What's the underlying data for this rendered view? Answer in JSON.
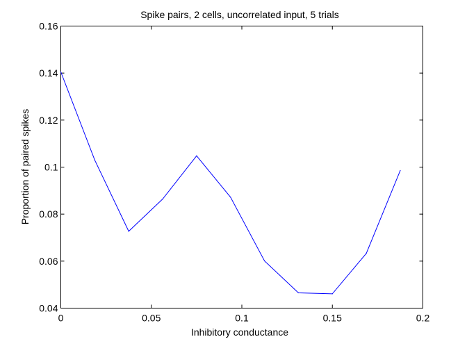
{
  "chart_data": {
    "type": "line",
    "title": "Spike pairs, 2 cells, uncorrelated input, 5 trials",
    "xlabel": "Inhibitory conductance",
    "ylabel": "Proportion of paired spikes",
    "xlim": [
      0,
      0.2
    ],
    "ylim": [
      0.04,
      0.16
    ],
    "xticks": [
      0,
      0.05,
      0.1,
      0.15,
      0.2
    ],
    "xtick_labels": [
      "0",
      "0.05",
      "0.1",
      "0.15",
      "0.2"
    ],
    "yticks": [
      0.04,
      0.06,
      0.08,
      0.1,
      0.12,
      0.14,
      0.16
    ],
    "ytick_labels": [
      "0.04",
      "0.06",
      "0.08",
      "0.1",
      "0.12",
      "0.14",
      "0.16"
    ],
    "grid": false,
    "series": [
      {
        "color": "#0000ff",
        "x": [
          0,
          0.01875,
          0.0375,
          0.05625,
          0.075,
          0.09375,
          0.1125,
          0.13125,
          0.15,
          0.16875,
          0.1875
        ],
        "y": [
          0.1405,
          0.103,
          0.0727,
          0.0864,
          0.1048,
          0.0872,
          0.0601,
          0.0465,
          0.0461,
          0.0633,
          0.0985
        ]
      }
    ]
  }
}
